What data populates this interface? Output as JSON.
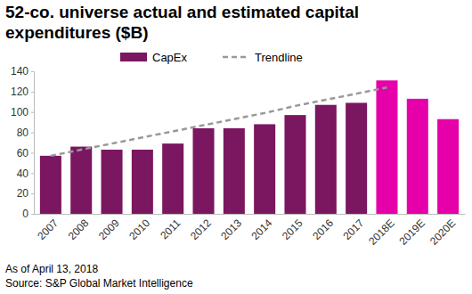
{
  "chart_data": {
    "type": "bar",
    "title": "52-co. universe actual and estimated capital expenditures ($B)",
    "categories": [
      "2007",
      "2008",
      "2009",
      "2010",
      "2011",
      "2012",
      "2013",
      "2014",
      "2015",
      "2016",
      "2017",
      "2018E",
      "2019E",
      "2020E"
    ],
    "series": [
      {
        "name": "CapEx",
        "type": "bar",
        "colors": [
          "#7b1660",
          "#7b1660",
          "#7b1660",
          "#7b1660",
          "#7b1660",
          "#7b1660",
          "#7b1660",
          "#7b1660",
          "#7b1660",
          "#7b1660",
          "#7b1660",
          "#e500a9",
          "#e500a9",
          "#e500a9"
        ],
        "values": [
          57,
          66,
          63,
          63,
          69,
          84,
          84,
          88,
          97,
          107,
          109,
          131,
          113,
          93
        ]
      },
      {
        "name": "Trendline",
        "type": "line",
        "line_style": "dashed",
        "color": "#999999",
        "values": [
          57,
          63,
          69,
          75,
          81,
          87,
          93,
          99,
          106,
          112,
          118,
          124,
          null,
          null
        ]
      }
    ],
    "ylim": [
      0,
      140
    ],
    "yticks": [
      0,
      20,
      40,
      60,
      80,
      100,
      120,
      140
    ],
    "grid": false,
    "legend": "top",
    "annotations": [
      "As of April 13, 2018",
      "Source: S&P Global Market Intelligence"
    ]
  }
}
